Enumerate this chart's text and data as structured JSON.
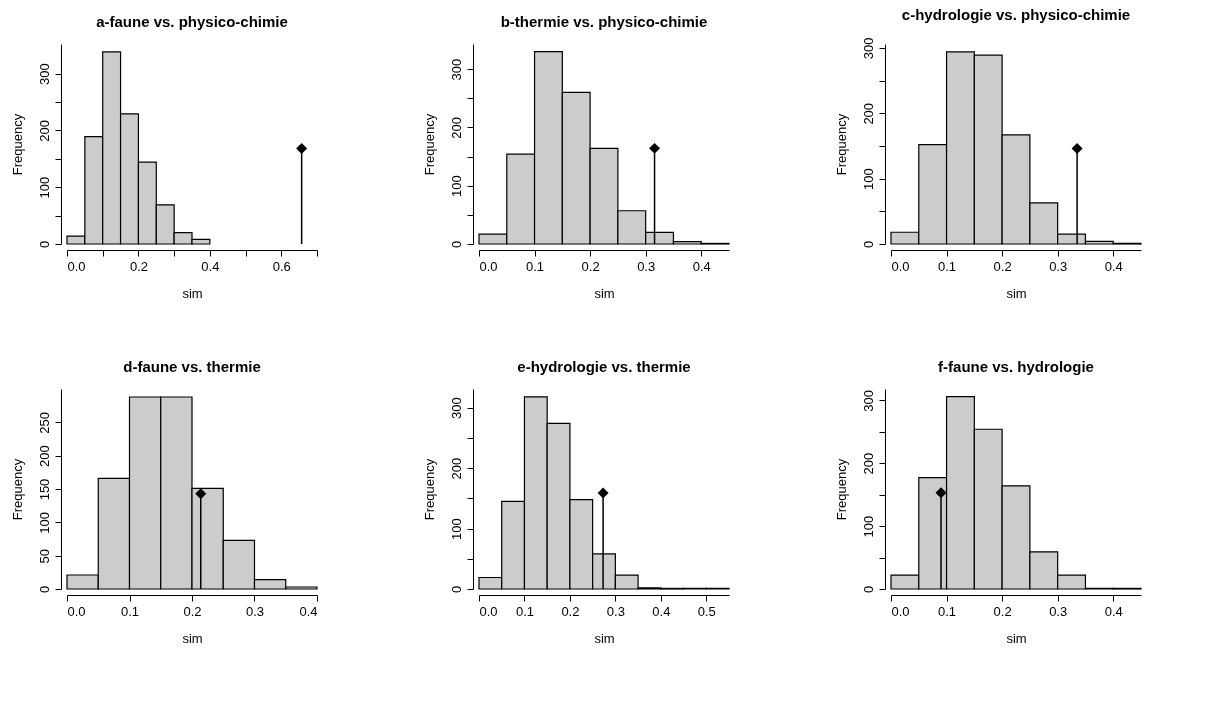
{
  "chart_data": [
    {
      "type": "histogram",
      "title": "a-faune vs. physico-chimie",
      "xlabel": "sim",
      "ylabel": "Frequency",
      "xlim": [
        0,
        0.7
      ],
      "ylim": [
        0,
        352
      ],
      "xticks": [
        {
          "value": 0,
          "label": "0.0"
        },
        {
          "value": 0.1,
          "label": null
        },
        {
          "value": 0.2,
          "label": "0.2"
        },
        {
          "value": 0.3,
          "label": null
        },
        {
          "value": 0.4,
          "label": "0.4"
        },
        {
          "value": 0.5,
          "label": null
        },
        {
          "value": 0.6,
          "label": "0.6"
        },
        {
          "value": 0.7,
          "label": null
        }
      ],
      "yticks": [
        0,
        {
          "value": 50,
          "label": null
        },
        100,
        {
          "value": 150,
          "label": null
        },
        200,
        {
          "value": 250,
          "label": null
        },
        300
      ],
      "series": [
        {
          "type": "histogram",
          "color": "#cccccc",
          "bins": [
            0,
            0.05,
            0.1,
            0.15,
            0.2,
            0.25,
            0.3,
            0.35,
            0.4
          ],
          "values": [
            14,
            189,
            338,
            229,
            144,
            69,
            20,
            8
          ]
        },
        {
          "type": "lollipop",
          "color": "#000000",
          "marker": "diamond",
          "x": [
            0.657
          ],
          "values": [
            168
          ]
        }
      ]
    },
    {
      "type": "histogram",
      "title": "b-thermie vs. physico-chimie",
      "xlabel": "sim",
      "ylabel": "Frequency",
      "xlim": [
        0,
        0.45
      ],
      "ylim": [
        0,
        343
      ],
      "xticks": [
        {
          "value": 0,
          "label": "0.0"
        },
        {
          "value": 0.1,
          "label": "0.1"
        },
        {
          "value": 0.2,
          "label": "0.2"
        },
        {
          "value": 0.3,
          "label": "0.3"
        },
        {
          "value": 0.4,
          "label": "0.4"
        }
      ],
      "yticks": [
        0,
        {
          "value": 50,
          "label": null
        },
        100,
        {
          "value": 150,
          "label": null
        },
        200,
        {
          "value": 250,
          "label": null
        },
        300
      ],
      "series": [
        {
          "type": "histogram",
          "color": "#cccccc",
          "bins": [
            0,
            0.05,
            0.1,
            0.15,
            0.2,
            0.25,
            0.3,
            0.35,
            0.4,
            0.45
          ],
          "values": [
            17,
            154,
            330,
            260,
            164,
            57,
            20,
            4,
            1
          ]
        },
        {
          "type": "lollipop",
          "color": "#000000",
          "marker": "diamond",
          "x": [
            0.316
          ],
          "values": [
            164
          ]
        }
      ]
    },
    {
      "type": "histogram",
      "title": "c-hydrologie vs. physico-chimie",
      "xlabel": "sim",
      "ylabel": "Frequency",
      "xlim": [
        0,
        0.45
      ],
      "ylim": [
        0,
        306
      ],
      "xticks": [
        {
          "value": 0,
          "label": "0.0"
        },
        {
          "value": 0.1,
          "label": "0.1"
        },
        {
          "value": 0.2,
          "label": "0.2"
        },
        {
          "value": 0.3,
          "label": "0.3"
        },
        {
          "value": 0.4,
          "label": "0.4"
        }
      ],
      "yticks": [
        0,
        {
          "value": 50,
          "label": null
        },
        100,
        {
          "value": 150,
          "label": null
        },
        200,
        {
          "value": 250,
          "label": null
        },
        300
      ],
      "series": [
        {
          "type": "histogram",
          "color": "#cccccc",
          "bins": [
            0,
            0.05,
            0.1,
            0.15,
            0.2,
            0.25,
            0.3,
            0.35,
            0.4,
            0.45
          ],
          "values": [
            18,
            152,
            294,
            289,
            167,
            63,
            15,
            4,
            1
          ]
        },
        {
          "type": "lollipop",
          "color": "#000000",
          "marker": "diamond",
          "x": [
            0.335
          ],
          "values": [
            146
          ]
        }
      ]
    },
    {
      "type": "histogram",
      "title": "d-faune vs. thermie",
      "xlabel": "sim",
      "ylabel": "Frequency",
      "xlim": [
        0,
        0.4
      ],
      "ylim": [
        0,
        300
      ],
      "xticks": [
        {
          "value": 0,
          "label": "0.0"
        },
        {
          "value": 0.1,
          "label": "0.1"
        },
        {
          "value": 0.2,
          "label": "0.2"
        },
        {
          "value": 0.3,
          "label": "0.3"
        },
        {
          "value": 0.4,
          "label": "0.4"
        }
      ],
      "yticks": [
        0,
        50,
        100,
        150,
        200,
        250
      ],
      "series": [
        {
          "type": "histogram",
          "color": "#cccccc",
          "bins": [
            0,
            0.05,
            0.1,
            0.15,
            0.2,
            0.25,
            0.3,
            0.35,
            0.4
          ],
          "values": [
            21,
            166,
            288,
            288,
            151,
            73,
            14,
            3
          ]
        },
        {
          "type": "lollipop",
          "color": "#000000",
          "marker": "diamond",
          "x": [
            0.214
          ],
          "values": [
            143
          ]
        }
      ]
    },
    {
      "type": "histogram",
      "title": "e-hydrologie vs. thermie",
      "xlabel": "sim",
      "ylabel": "Frequency",
      "xlim": [
        0,
        0.55
      ],
      "ylim": [
        0,
        331
      ],
      "xticks": [
        {
          "value": 0,
          "label": "0.0"
        },
        {
          "value": 0.1,
          "label": "0.1"
        },
        {
          "value": 0.2,
          "label": "0.2"
        },
        {
          "value": 0.3,
          "label": "0.3"
        },
        {
          "value": 0.4,
          "label": "0.4"
        },
        {
          "value": 0.5,
          "label": "0.5"
        }
      ],
      "yticks": [
        0,
        {
          "value": 50,
          "label": null
        },
        100,
        {
          "value": 150,
          "label": null
        },
        200,
        {
          "value": 250,
          "label": null
        },
        300
      ],
      "series": [
        {
          "type": "histogram",
          "color": "#cccccc",
          "bins": [
            0,
            0.05,
            0.1,
            0.15,
            0.2,
            0.25,
            0.3,
            0.35,
            0.4,
            0.45,
            0.5,
            0.55
          ],
          "values": [
            19,
            145,
            318,
            274,
            148,
            58,
            23,
            2,
            1,
            1,
            1
          ]
        },
        {
          "type": "lollipop",
          "color": "#000000",
          "marker": "diamond",
          "x": [
            0.273
          ],
          "values": [
            159
          ]
        }
      ]
    },
    {
      "type": "histogram",
      "title": "f-faune vs. hydrologie",
      "xlabel": "sim",
      "ylabel": "Frequency",
      "xlim": [
        0,
        0.45
      ],
      "ylim": [
        0,
        318
      ],
      "xticks": [
        {
          "value": 0,
          "label": "0.0"
        },
        {
          "value": 0.1,
          "label": "0.1"
        },
        {
          "value": 0.2,
          "label": "0.2"
        },
        {
          "value": 0.3,
          "label": "0.3"
        },
        {
          "value": 0.4,
          "label": "0.4"
        }
      ],
      "yticks": [
        0,
        {
          "value": 50,
          "label": null
        },
        100,
        {
          "value": 150,
          "label": null
        },
        200,
        {
          "value": 250,
          "label": null
        },
        300
      ],
      "series": [
        {
          "type": "histogram",
          "color": "#cccccc",
          "bins": [
            0,
            0.05,
            0.1,
            0.15,
            0.2,
            0.25,
            0.3,
            0.35,
            0.4,
            0.45
          ],
          "values": [
            22,
            177,
            306,
            254,
            164,
            59,
            22,
            1,
            1
          ]
        },
        {
          "type": "lollipop",
          "color": "#000000",
          "marker": "diamond",
          "x": [
            0.09
          ],
          "values": [
            153
          ]
        }
      ]
    }
  ]
}
